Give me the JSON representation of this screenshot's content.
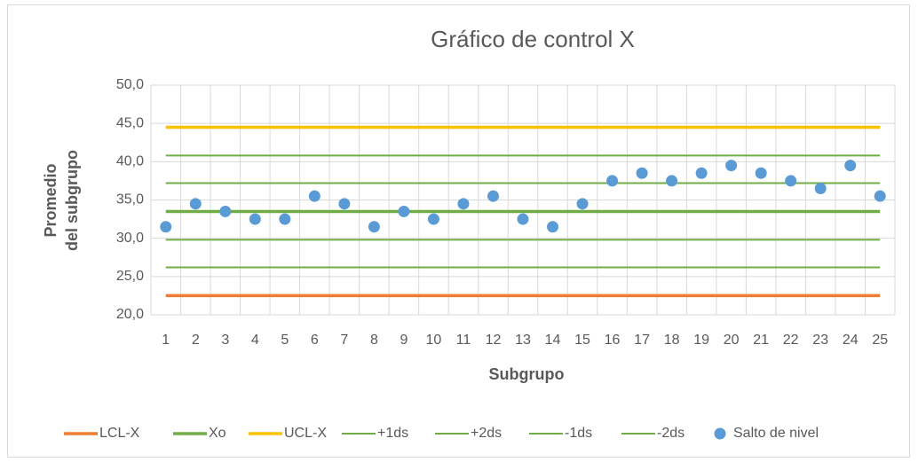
{
  "chart_data": {
    "type": "control",
    "title": "Gráfico de control X",
    "x_label": "Subgrupo",
    "y_label": [
      "Promedio",
      "del subgrupo"
    ],
    "categories": [
      "1",
      "2",
      "3",
      "4",
      "5",
      "6",
      "7",
      "8",
      "9",
      "10",
      "11",
      "12",
      "13",
      "14",
      "15",
      "16",
      "17",
      "18",
      "19",
      "20",
      "21",
      "22",
      "23",
      "24",
      "25"
    ],
    "ylim": [
      20,
      50
    ],
    "yticks": [
      {
        "value": 20,
        "label": "20,0"
      },
      {
        "value": 25,
        "label": "25,0"
      },
      {
        "value": 30,
        "label": "30,0"
      },
      {
        "value": 35,
        "label": "35,0"
      },
      {
        "value": 40,
        "label": "40,0"
      },
      {
        "value": 45,
        "label": "45,0"
      },
      {
        "value": 50,
        "label": "50,0"
      }
    ],
    "grid": true,
    "legend": "bottom",
    "series": [
      {
        "name": "LCL-X",
        "color": "#ED7D31",
        "style": "line",
        "width": 3.5,
        "values": [
          22.5,
          22.5,
          22.5,
          22.5,
          22.5,
          22.5,
          22.5,
          22.5,
          22.5,
          22.5,
          22.5,
          22.5,
          22.5,
          22.5,
          22.5,
          22.5,
          22.5,
          22.5,
          22.5,
          22.5,
          22.5,
          22.5,
          22.5,
          22.5,
          22.5
        ]
      },
      {
        "name": "Xo",
        "color": "#70AD47",
        "style": "line",
        "width": 3.5,
        "values": [
          33.5,
          33.5,
          33.5,
          33.5,
          33.5,
          33.5,
          33.5,
          33.5,
          33.5,
          33.5,
          33.5,
          33.5,
          33.5,
          33.5,
          33.5,
          33.5,
          33.5,
          33.5,
          33.5,
          33.5,
          33.5,
          33.5,
          33.5,
          33.5,
          33.5
        ]
      },
      {
        "name": "UCL-X",
        "color": "#FFC000",
        "style": "line",
        "width": 3.5,
        "values": [
          44.5,
          44.5,
          44.5,
          44.5,
          44.5,
          44.5,
          44.5,
          44.5,
          44.5,
          44.5,
          44.5,
          44.5,
          44.5,
          44.5,
          44.5,
          44.5,
          44.5,
          44.5,
          44.5,
          44.5,
          44.5,
          44.5,
          44.5,
          44.5,
          44.5
        ]
      },
      {
        "name": "+1ds",
        "color": "#70AD47",
        "style": "line",
        "width": 2,
        "values": [
          37.2,
          37.2,
          37.2,
          37.2,
          37.2,
          37.2,
          37.2,
          37.2,
          37.2,
          37.2,
          37.2,
          37.2,
          37.2,
          37.2,
          37.2,
          37.2,
          37.2,
          37.2,
          37.2,
          37.2,
          37.2,
          37.2,
          37.2,
          37.2,
          37.2
        ]
      },
      {
        "name": "+2ds",
        "color": "#70AD47",
        "style": "line",
        "width": 2,
        "values": [
          40.8,
          40.8,
          40.8,
          40.8,
          40.8,
          40.8,
          40.8,
          40.8,
          40.8,
          40.8,
          40.8,
          40.8,
          40.8,
          40.8,
          40.8,
          40.8,
          40.8,
          40.8,
          40.8,
          40.8,
          40.8,
          40.8,
          40.8,
          40.8,
          40.8
        ]
      },
      {
        "name": "-1ds",
        "color": "#70AD47",
        "style": "line",
        "width": 2,
        "values": [
          29.8,
          29.8,
          29.8,
          29.8,
          29.8,
          29.8,
          29.8,
          29.8,
          29.8,
          29.8,
          29.8,
          29.8,
          29.8,
          29.8,
          29.8,
          29.8,
          29.8,
          29.8,
          29.8,
          29.8,
          29.8,
          29.8,
          29.8,
          29.8,
          29.8
        ]
      },
      {
        "name": "-2ds",
        "color": "#70AD47",
        "style": "line",
        "width": 2,
        "values": [
          26.2,
          26.2,
          26.2,
          26.2,
          26.2,
          26.2,
          26.2,
          26.2,
          26.2,
          26.2,
          26.2,
          26.2,
          26.2,
          26.2,
          26.2,
          26.2,
          26.2,
          26.2,
          26.2,
          26.2,
          26.2,
          26.2,
          26.2,
          26.2,
          26.2
        ]
      },
      {
        "name": "Salto de nivel",
        "color": "#5B9BD5",
        "style": "marker",
        "values": [
          31.5,
          34.5,
          33.5,
          32.5,
          32.5,
          35.5,
          34.5,
          31.5,
          33.5,
          32.5,
          34.5,
          35.5,
          32.5,
          31.5,
          34.5,
          37.5,
          38.5,
          37.5,
          38.5,
          39.5,
          38.5,
          37.5,
          36.5,
          39.5,
          35.5
        ]
      }
    ]
  }
}
